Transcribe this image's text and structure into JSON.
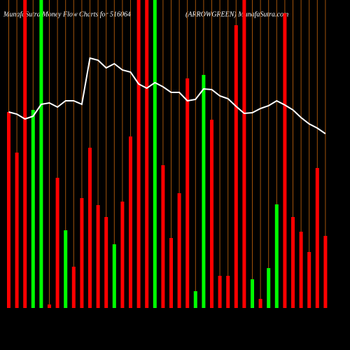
{
  "chart_data": {
    "type": "bar",
    "title": "MunafaSutra  Money Flow  Charts for 516064",
    "subtitle": "(ARROWGREEN) MunafaSutra.com",
    "categories": [
      null,
      null,
      null,
      null,
      null,
      null,
      null,
      null,
      null,
      null,
      null,
      null,
      null,
      null,
      null,
      null,
      null,
      null,
      null,
      null,
      null,
      null,
      null,
      null,
      null,
      null,
      null,
      null,
      null,
      null,
      null,
      null,
      null,
      null,
      null,
      null,
      null,
      null,
      null,
      null
    ],
    "ylim": [
      0,
      440
    ],
    "grid": true,
    "grid_color": "#a0520a",
    "background": "#000000",
    "values": [
      280,
      222,
      440,
      283,
      440,
      5,
      186,
      111,
      59,
      157,
      229,
      147,
      130,
      91,
      152,
      245,
      440,
      440,
      440,
      204,
      100,
      164,
      328,
      24,
      333,
      269,
      46,
      46,
      404,
      440,
      41,
      13,
      57,
      148,
      421,
      130,
      109,
      80,
      200,
      103
    ],
    "colors": [
      "#ff0000",
      "#ff0000",
      "#ff0000",
      "#00ff00",
      "#00ff00",
      "#ff0000",
      "#ff0000",
      "#00ff00",
      "#ff0000",
      "#ff0000",
      "#ff0000",
      "#ff0000",
      "#ff0000",
      "#00ff00",
      "#ff0000",
      "#ff0000",
      "#ff0000",
      "#ff0000",
      "#00ff00",
      "#ff0000",
      "#ff0000",
      "#ff0000",
      "#ff0000",
      "#00ff00",
      "#00ff00",
      "#ff0000",
      "#ff0000",
      "#ff0000",
      "#ff0000",
      "#ff0000",
      "#00ff00",
      "#ff0000",
      "#00ff00",
      "#00ff00",
      "#ff0000",
      "#ff0000",
      "#ff0000",
      "#ff0000",
      "#ff0000",
      "#ff0000"
    ],
    "line_values": [
      280,
      277,
      270,
      274,
      291,
      293,
      287,
      296,
      296,
      291,
      357,
      354,
      343,
      349,
      340,
      337,
      320,
      314,
      322,
      316,
      308,
      308,
      296,
      298,
      313,
      312,
      303,
      299,
      288,
      278,
      279,
      285,
      289,
      296,
      290,
      283,
      272,
      263,
      257,
      249
    ],
    "line_color": "#ffffff"
  }
}
